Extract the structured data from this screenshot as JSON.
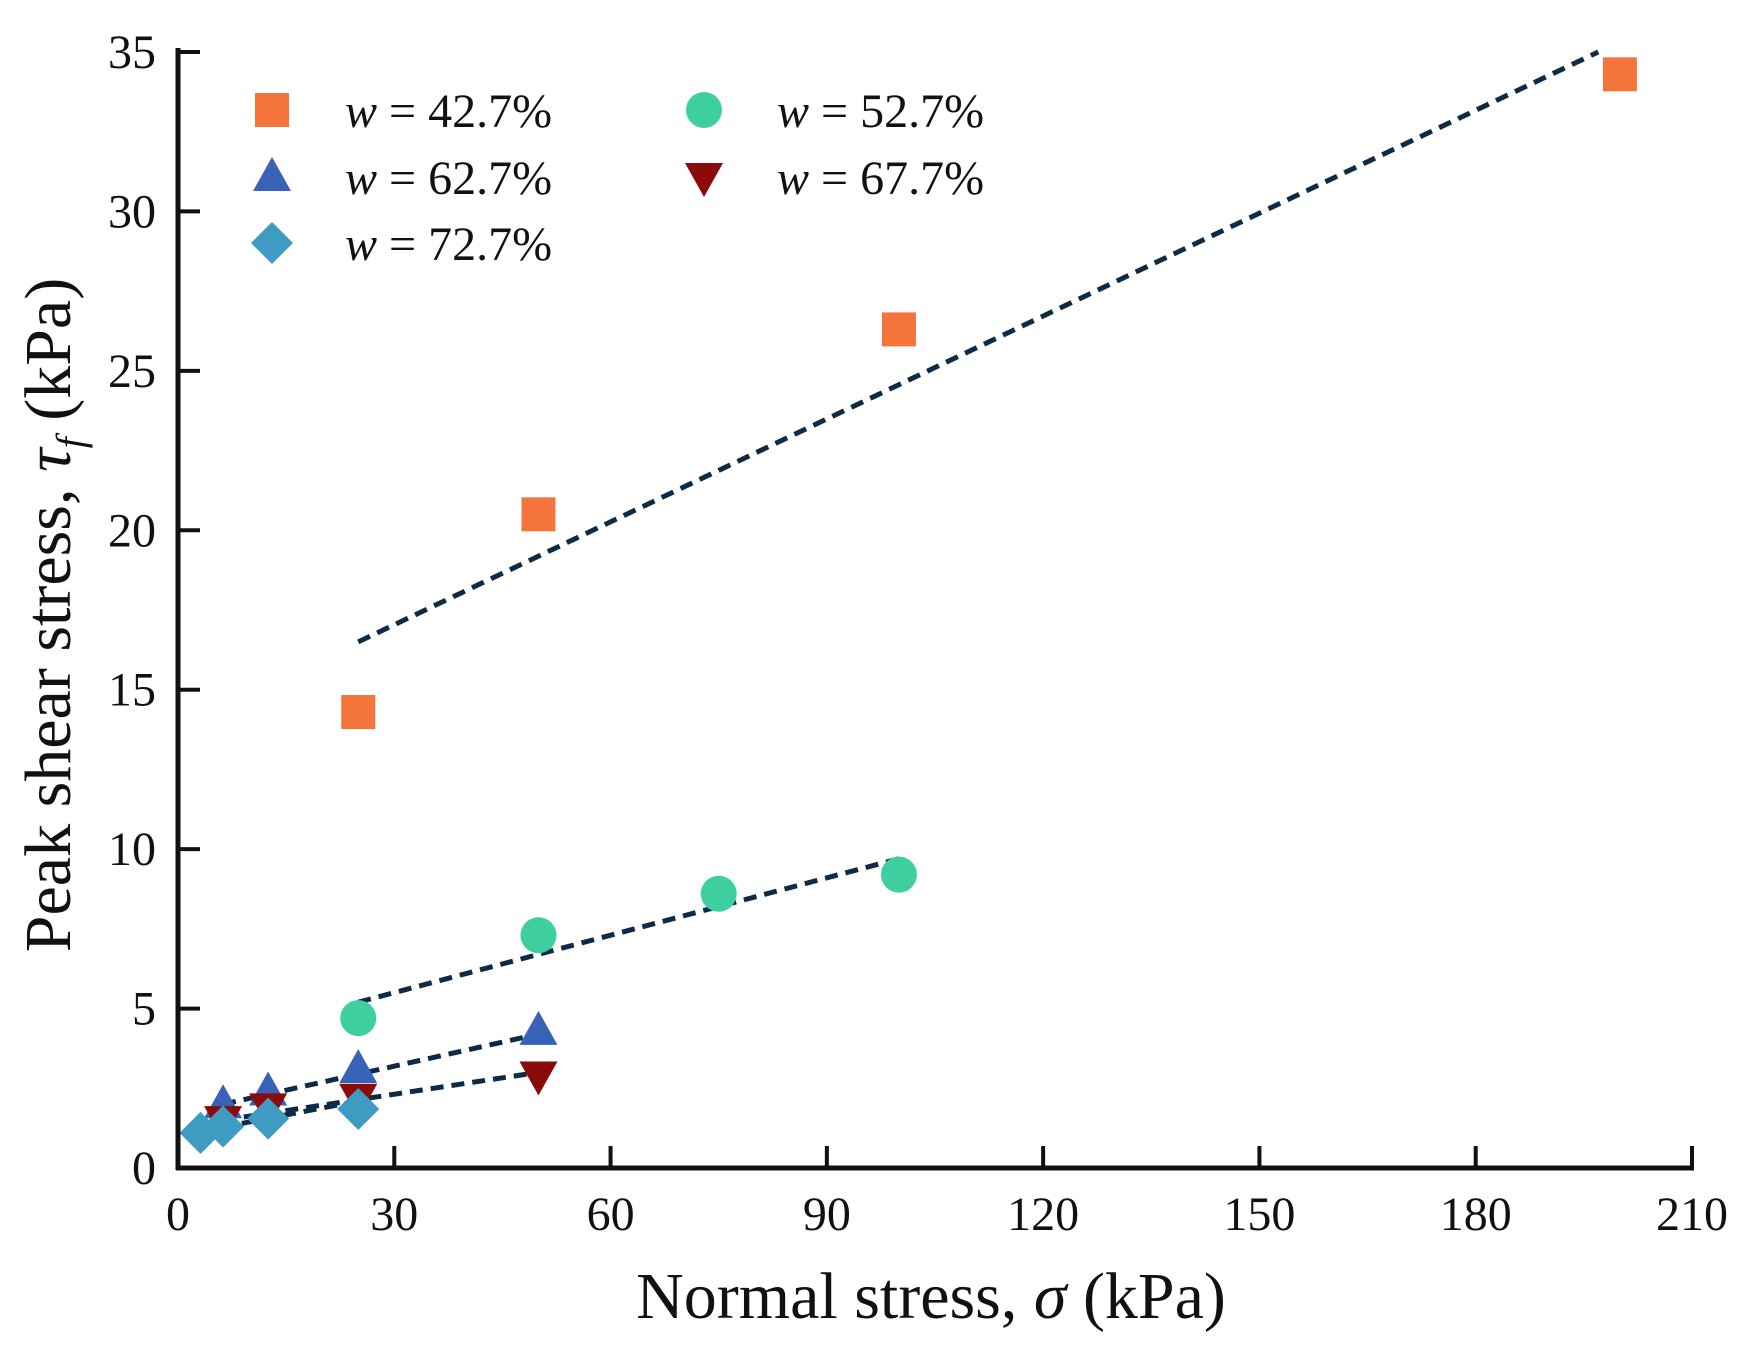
{
  "chart_data": {
    "type": "scatter",
    "title": "",
    "xlabel": "Normal stress, σ (kPa)",
    "ylabel": "Peak shear stress, τf (kPa)",
    "xlabel_parts": {
      "text": "Normal stress, ",
      "symbol": "σ",
      "unit": " (kPa)"
    },
    "ylabel_parts": {
      "text": "Peak shear stress, ",
      "symbol": "τ",
      "subscript": "f",
      "unit": " (kPa)"
    },
    "xlim": [
      0,
      210
    ],
    "ylim": [
      0,
      35
    ],
    "xticks": [
      0,
      30,
      60,
      90,
      120,
      150,
      180,
      210
    ],
    "yticks": [
      0,
      5,
      10,
      15,
      20,
      25,
      30,
      35
    ],
    "grid": false,
    "legend_position": "top-left",
    "series": [
      {
        "name": "w = 42.7%",
        "var": "w",
        "eq": " = 42.7%",
        "marker": "square",
        "color": "#F4743B",
        "points": [
          [
            25,
            14.3
          ],
          [
            50,
            20.5
          ],
          [
            100,
            26.3
          ],
          [
            200,
            34.3
          ]
        ],
        "fit": [
          [
            25,
            16.5
          ],
          [
            197,
            35.0
          ]
        ]
      },
      {
        "name": "w = 52.7%",
        "var": "w",
        "eq": " = 52.7%",
        "marker": "circle",
        "color": "#3ECFA0",
        "points": [
          [
            25,
            4.7
          ],
          [
            50,
            7.3
          ],
          [
            75,
            8.6
          ],
          [
            100,
            9.2
          ]
        ],
        "fit": [
          [
            25,
            5.2
          ],
          [
            100,
            9.7
          ]
        ]
      },
      {
        "name": "w = 62.7%",
        "var": "w",
        "eq": " = 62.7%",
        "marker": "triangle-up",
        "color": "#3762B8",
        "points": [
          [
            6.25,
            2.0
          ],
          [
            12.5,
            2.4
          ],
          [
            25,
            3.1
          ],
          [
            50,
            4.3
          ]
        ],
        "fit": [
          [
            6.25,
            2.0
          ],
          [
            50,
            4.2
          ]
        ]
      },
      {
        "name": "w = 67.7%",
        "var": "w",
        "eq": " = 67.7%",
        "marker": "triangle-down",
        "color": "#8B0A0A",
        "points": [
          [
            6.25,
            1.5
          ],
          [
            12.5,
            1.9
          ],
          [
            25,
            2.2
          ],
          [
            50,
            2.9
          ]
        ],
        "fit": [
          [
            6.25,
            1.5
          ],
          [
            50,
            3.0
          ]
        ]
      },
      {
        "name": "w = 72.7%",
        "var": "w",
        "eq": " = 72.7%",
        "marker": "diamond",
        "color": "#3E9BC1",
        "points": [
          [
            3.125,
            1.1
          ],
          [
            6.25,
            1.3
          ],
          [
            12.5,
            1.55
          ],
          [
            25,
            1.85
          ]
        ],
        "fit": [
          [
            3.125,
            1.15
          ],
          [
            25,
            2.1
          ]
        ]
      }
    ],
    "fit_line_color": "#0D2B45",
    "legend_order": [
      0,
      1,
      2,
      3,
      4
    ]
  }
}
